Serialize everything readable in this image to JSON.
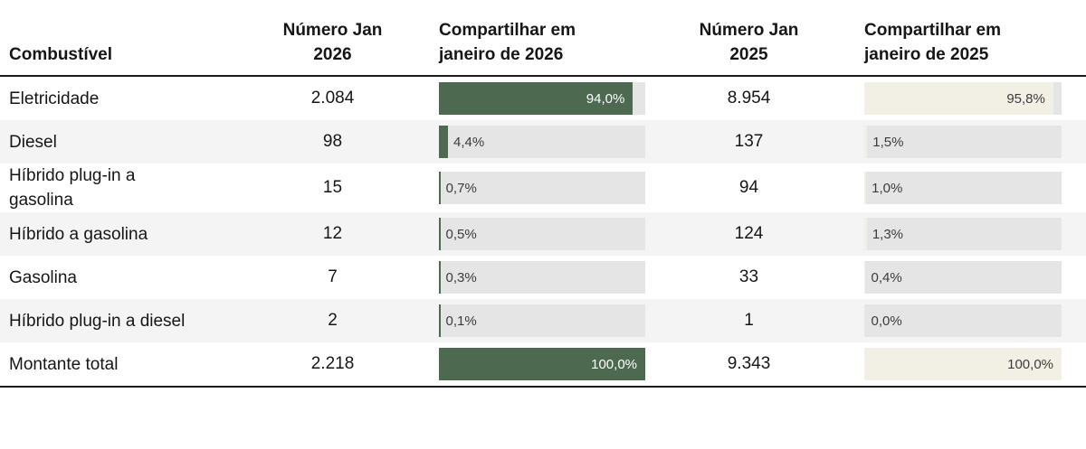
{
  "colors": {
    "bar_green": "#4d6a50",
    "bar_cream": "#f2f0e5",
    "bar_track": "#e5e5e5",
    "row_stripe": "#f4f4f4",
    "rule_dark": "#1a1a1a"
  },
  "table": {
    "columns": [
      {
        "label": "Combustível"
      },
      {
        "label": "Número Jan\n2026"
      },
      {
        "label": "Compartilhar em\njaneiro de 2026"
      },
      {
        "label": "Número Jan\n2025"
      },
      {
        "label": "Compartilhar em\njaneiro de 2025"
      }
    ],
    "rows": [
      {
        "fuel": "Eletricidade",
        "num_2026": "2.084",
        "share_2026_label": "94,0%",
        "share_2026_pct": 94.0,
        "num_2025": "8.954",
        "share_2025_label": "95,8%",
        "share_2025_pct": 95.8
      },
      {
        "fuel": "Diesel",
        "num_2026": "98",
        "share_2026_label": "4,4%",
        "share_2026_pct": 4.4,
        "num_2025": "137",
        "share_2025_label": "1,5%",
        "share_2025_pct": 1.5
      },
      {
        "fuel": "Híbrido plug-in a gasolina",
        "num_2026": "15",
        "share_2026_label": "0,7%",
        "share_2026_pct": 0.7,
        "num_2025": "94",
        "share_2025_label": "1,0%",
        "share_2025_pct": 1.0
      },
      {
        "fuel": "Híbrido a gasolina",
        "num_2026": "12",
        "share_2026_label": "0,5%",
        "share_2026_pct": 0.5,
        "num_2025": "124",
        "share_2025_label": "1,3%",
        "share_2025_pct": 1.3
      },
      {
        "fuel": "Gasolina",
        "num_2026": "7",
        "share_2026_label": "0,3%",
        "share_2026_pct": 0.3,
        "num_2025": "33",
        "share_2025_label": "0,4%",
        "share_2025_pct": 0.4
      },
      {
        "fuel": "Híbrido plug-in a diesel",
        "num_2026": "2",
        "share_2026_label": "0,1%",
        "share_2026_pct": 0.1,
        "num_2025": "1",
        "share_2025_label": "0,0%",
        "share_2025_pct": 0.0
      },
      {
        "fuel": "Montante total",
        "num_2026": "2.218",
        "share_2026_label": "100,0%",
        "share_2026_pct": 100.0,
        "num_2025": "9.343",
        "share_2025_label": "100,0%",
        "share_2025_pct": 100.0
      }
    ]
  },
  "chart_data": {
    "type": "table",
    "title": "",
    "columns": [
      "Combustível",
      "Número Jan 2026",
      "Compartilhar em janeiro de 2026",
      "Número Jan 2025",
      "Compartilhar em janeiro de 2025"
    ],
    "bar_columns": [
      "Compartilhar em janeiro de 2026",
      "Compartilhar em janeiro de 2025"
    ],
    "rows": [
      [
        "Eletricidade",
        2084,
        94.0,
        8954,
        95.8
      ],
      [
        "Diesel",
        98,
        4.4,
        137,
        1.5
      ],
      [
        "Híbrido plug-in a gasolina",
        15,
        0.7,
        94,
        1.0
      ],
      [
        "Híbrido a gasolina",
        12,
        0.5,
        124,
        1.3
      ],
      [
        "Gasolina",
        7,
        0.3,
        33,
        0.4
      ],
      [
        "Híbrido plug-in a diesel",
        2,
        0.1,
        1,
        0.0
      ],
      [
        "Montante total",
        2218,
        100.0,
        9343,
        100.0
      ]
    ],
    "layout": {
      "bar_2026_color": "#4d6a50",
      "bar_2025_color": "#f2f0e5",
      "bar_background": "#e5e5e5",
      "value_format": "pt-BR"
    }
  }
}
